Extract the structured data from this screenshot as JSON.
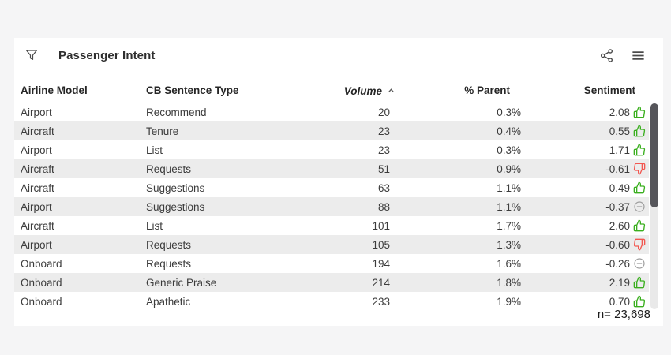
{
  "widget": {
    "title": "Passenger Intent",
    "total_label": "n= 23,698"
  },
  "icons": {
    "filter": "funnel-icon",
    "share": "share-network-icon",
    "menu": "hamburger-menu-icon",
    "sort": "caret-up-icon",
    "positive": "thumbs-up-icon",
    "negative": "thumbs-down-icon",
    "neutral": "minus-circle-icon"
  },
  "colors": {
    "positive": "#3aaf1e",
    "negative": "#f25750",
    "neutral": "#9e9e9e",
    "stripe": "#ececec"
  },
  "table": {
    "columns": [
      {
        "label": "Airline Model",
        "align": "left"
      },
      {
        "label": "CB Sentence Type",
        "align": "left"
      },
      {
        "label": "Volume",
        "align": "right",
        "sorted": "ascending"
      },
      {
        "label": "% Parent",
        "align": "right"
      },
      {
        "label": "Sentiment",
        "align": "right"
      }
    ],
    "rows": [
      {
        "model": "Airport",
        "type": "Recommend",
        "volume": "20",
        "parent": "0.3%",
        "sentiment": "2.08",
        "icon": "thumbs-up"
      },
      {
        "model": "Aircraft",
        "type": "Tenure",
        "volume": "23",
        "parent": "0.4%",
        "sentiment": "0.55",
        "icon": "thumbs-up"
      },
      {
        "model": "Airport",
        "type": "List",
        "volume": "23",
        "parent": "0.3%",
        "sentiment": "1.71",
        "icon": "thumbs-up"
      },
      {
        "model": "Aircraft",
        "type": "Requests",
        "volume": "51",
        "parent": "0.9%",
        "sentiment": "-0.61",
        "icon": "thumbs-down"
      },
      {
        "model": "Aircraft",
        "type": "Suggestions",
        "volume": "63",
        "parent": "1.1%",
        "sentiment": "0.49",
        "icon": "thumbs-up"
      },
      {
        "model": "Airport",
        "type": "Suggestions",
        "volume": "88",
        "parent": "1.1%",
        "sentiment": "-0.37",
        "icon": "neutral"
      },
      {
        "model": "Aircraft",
        "type": "List",
        "volume": "101",
        "parent": "1.7%",
        "sentiment": "2.60",
        "icon": "thumbs-up"
      },
      {
        "model": "Airport",
        "type": "Requests",
        "volume": "105",
        "parent": "1.3%",
        "sentiment": "-0.60",
        "icon": "thumbs-down"
      },
      {
        "model": "Onboard",
        "type": "Requests",
        "volume": "194",
        "parent": "1.6%",
        "sentiment": "-0.26",
        "icon": "neutral"
      },
      {
        "model": "Onboard",
        "type": "Generic Praise",
        "volume": "214",
        "parent": "1.8%",
        "sentiment": "2.19",
        "icon": "thumbs-up"
      },
      {
        "model": "Onboard",
        "type": "Apathetic",
        "volume": "233",
        "parent": "1.9%",
        "sentiment": "0.70",
        "icon": "thumbs-up"
      }
    ]
  }
}
